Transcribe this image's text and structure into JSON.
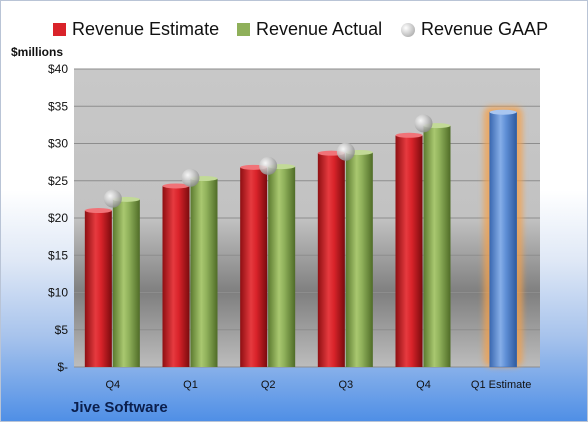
{
  "chart_data": {
    "type": "bar",
    "title": "",
    "ylabel": "$millions",
    "company": "Jive Software",
    "categories": [
      "Q4",
      "Q1",
      "Q2",
      "Q3",
      "Q4",
      "Q1 Estimate"
    ],
    "ylim": [
      0,
      40
    ],
    "yticks": [
      {
        "value": 0,
        "label": "$-"
      },
      {
        "value": 5,
        "label": "$5"
      },
      {
        "value": 10,
        "label": "$10"
      },
      {
        "value": 15,
        "label": "$15"
      },
      {
        "value": 20,
        "label": "$20"
      },
      {
        "value": 25,
        "label": "$25"
      },
      {
        "value": 30,
        "label": "$30"
      },
      {
        "value": 35,
        "label": "$35"
      },
      {
        "value": 40,
        "label": "$40"
      }
    ],
    "grid": true,
    "legend_position": "top",
    "series": [
      {
        "name": "Revenue Estimate",
        "kind": "bar",
        "color": "#d9232a",
        "values": [
          21.0,
          24.3,
          26.8,
          28.7,
          31.1,
          34.2
        ]
      },
      {
        "name": "Revenue Actual",
        "kind": "bar",
        "color": "#8fb05a",
        "values": [
          22.5,
          25.3,
          26.9,
          28.8,
          32.4,
          null
        ]
      },
      {
        "name": "Revenue GAAP",
        "kind": "marker",
        "color": "#b5b5b5",
        "values": [
          22.6,
          25.4,
          27.0,
          28.9,
          32.7,
          null
        ]
      }
    ],
    "estimate_bar_color": "#5f8fd6",
    "estimate_highlight_color": "#f5a04a"
  }
}
